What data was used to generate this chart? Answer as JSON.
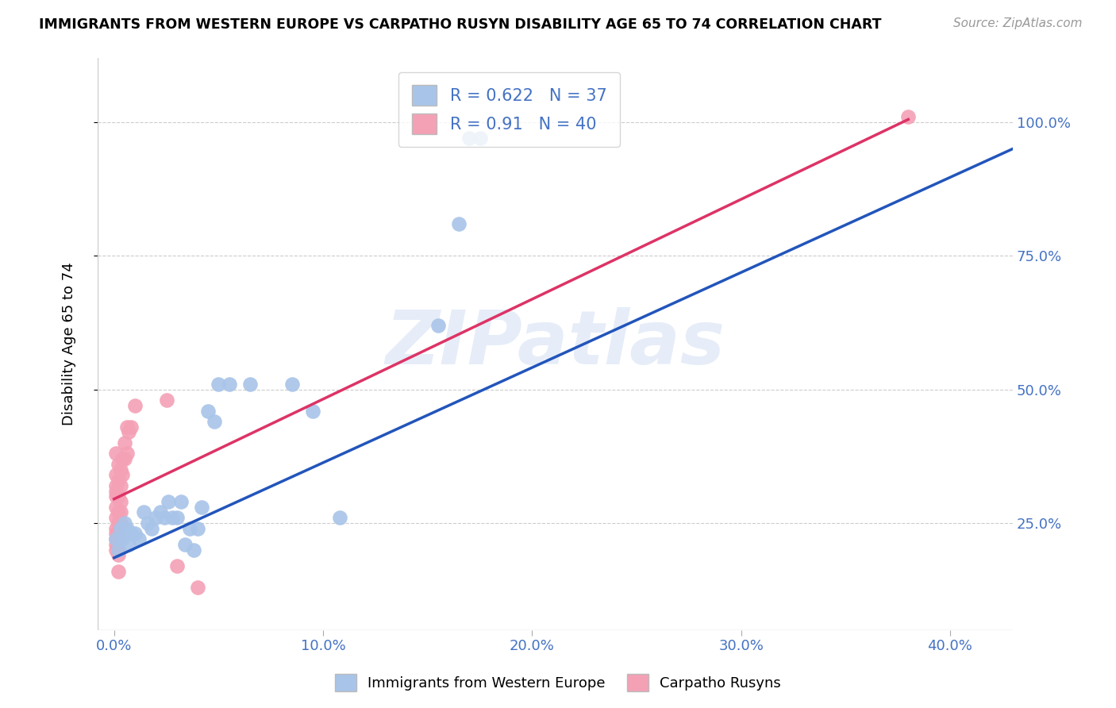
{
  "title": "IMMIGRANTS FROM WESTERN EUROPE VS CARPATHO RUSYN DISABILITY AGE 65 TO 74 CORRELATION CHART",
  "source": "Source: ZipAtlas.com",
  "ylabel": "Disability Age 65 to 74",
  "x_ticks": [
    0.0,
    0.1,
    0.2,
    0.3,
    0.4
  ],
  "x_tick_labels": [
    "0.0%",
    "10.0%",
    "20.0%",
    "30.0%",
    "40.0%"
  ],
  "y_ticks": [
    0.25,
    0.5,
    0.75,
    1.0
  ],
  "y_tick_labels": [
    "25.0%",
    "50.0%",
    "75.0%",
    "100.0%"
  ],
  "xlim": [
    -0.008,
    0.43
  ],
  "ylim": [
    0.05,
    1.12
  ],
  "blue_color": "#a8c4e8",
  "pink_color": "#f4a0b5",
  "blue_line_color": "#2255bb",
  "pink_line_color": "#dd3366",
  "R_blue": 0.622,
  "N_blue": 37,
  "R_pink": 0.91,
  "N_pink": 40,
  "legend_label_blue": "Immigrants from Western Europe",
  "legend_label_pink": "Carpatho Rusyns",
  "watermark": "ZIPatlas",
  "blue_line_x0": 0.0,
  "blue_line_x1": 0.43,
  "blue_line_y0": 0.185,
  "blue_line_y1": 0.95,
  "pink_line_x0": 0.0,
  "pink_line_x1": 0.38,
  "pink_line_y0": 0.295,
  "pink_line_y1": 1.005,
  "blue_scatter": [
    [
      0.001,
      0.22
    ],
    [
      0.002,
      0.2
    ],
    [
      0.003,
      0.24
    ],
    [
      0.004,
      0.22
    ],
    [
      0.005,
      0.25
    ],
    [
      0.006,
      0.24
    ],
    [
      0.007,
      0.21
    ],
    [
      0.008,
      0.23
    ],
    [
      0.01,
      0.23
    ],
    [
      0.012,
      0.22
    ],
    [
      0.014,
      0.27
    ],
    [
      0.016,
      0.25
    ],
    [
      0.018,
      0.24
    ],
    [
      0.02,
      0.26
    ],
    [
      0.022,
      0.27
    ],
    [
      0.024,
      0.26
    ],
    [
      0.026,
      0.29
    ],
    [
      0.028,
      0.26
    ],
    [
      0.03,
      0.26
    ],
    [
      0.032,
      0.29
    ],
    [
      0.034,
      0.21
    ],
    [
      0.036,
      0.24
    ],
    [
      0.038,
      0.2
    ],
    [
      0.04,
      0.24
    ],
    [
      0.042,
      0.28
    ],
    [
      0.045,
      0.46
    ],
    [
      0.048,
      0.44
    ],
    [
      0.05,
      0.51
    ],
    [
      0.055,
      0.51
    ],
    [
      0.065,
      0.51
    ],
    [
      0.085,
      0.51
    ],
    [
      0.095,
      0.46
    ],
    [
      0.108,
      0.26
    ],
    [
      0.155,
      0.62
    ],
    [
      0.165,
      0.81
    ],
    [
      0.17,
      0.97
    ],
    [
      0.175,
      0.97
    ]
  ],
  "pink_scatter": [
    [
      0.001,
      0.38
    ],
    [
      0.001,
      0.34
    ],
    [
      0.001,
      0.32
    ],
    [
      0.001,
      0.31
    ],
    [
      0.001,
      0.3
    ],
    [
      0.001,
      0.28
    ],
    [
      0.001,
      0.26
    ],
    [
      0.001,
      0.24
    ],
    [
      0.001,
      0.23
    ],
    [
      0.001,
      0.22
    ],
    [
      0.001,
      0.21
    ],
    [
      0.001,
      0.2
    ],
    [
      0.002,
      0.36
    ],
    [
      0.002,
      0.33
    ],
    [
      0.002,
      0.3
    ],
    [
      0.002,
      0.27
    ],
    [
      0.002,
      0.25
    ],
    [
      0.002,
      0.23
    ],
    [
      0.002,
      0.22
    ],
    [
      0.002,
      0.2
    ],
    [
      0.002,
      0.19
    ],
    [
      0.002,
      0.16
    ],
    [
      0.003,
      0.35
    ],
    [
      0.003,
      0.32
    ],
    [
      0.003,
      0.29
    ],
    [
      0.003,
      0.27
    ],
    [
      0.003,
      0.25
    ],
    [
      0.004,
      0.37
    ],
    [
      0.004,
      0.34
    ],
    [
      0.005,
      0.4
    ],
    [
      0.005,
      0.37
    ],
    [
      0.006,
      0.43
    ],
    [
      0.006,
      0.38
    ],
    [
      0.007,
      0.42
    ],
    [
      0.008,
      0.43
    ],
    [
      0.01,
      0.47
    ],
    [
      0.025,
      0.48
    ],
    [
      0.03,
      0.17
    ],
    [
      0.04,
      0.13
    ],
    [
      0.38,
      1.01
    ]
  ]
}
